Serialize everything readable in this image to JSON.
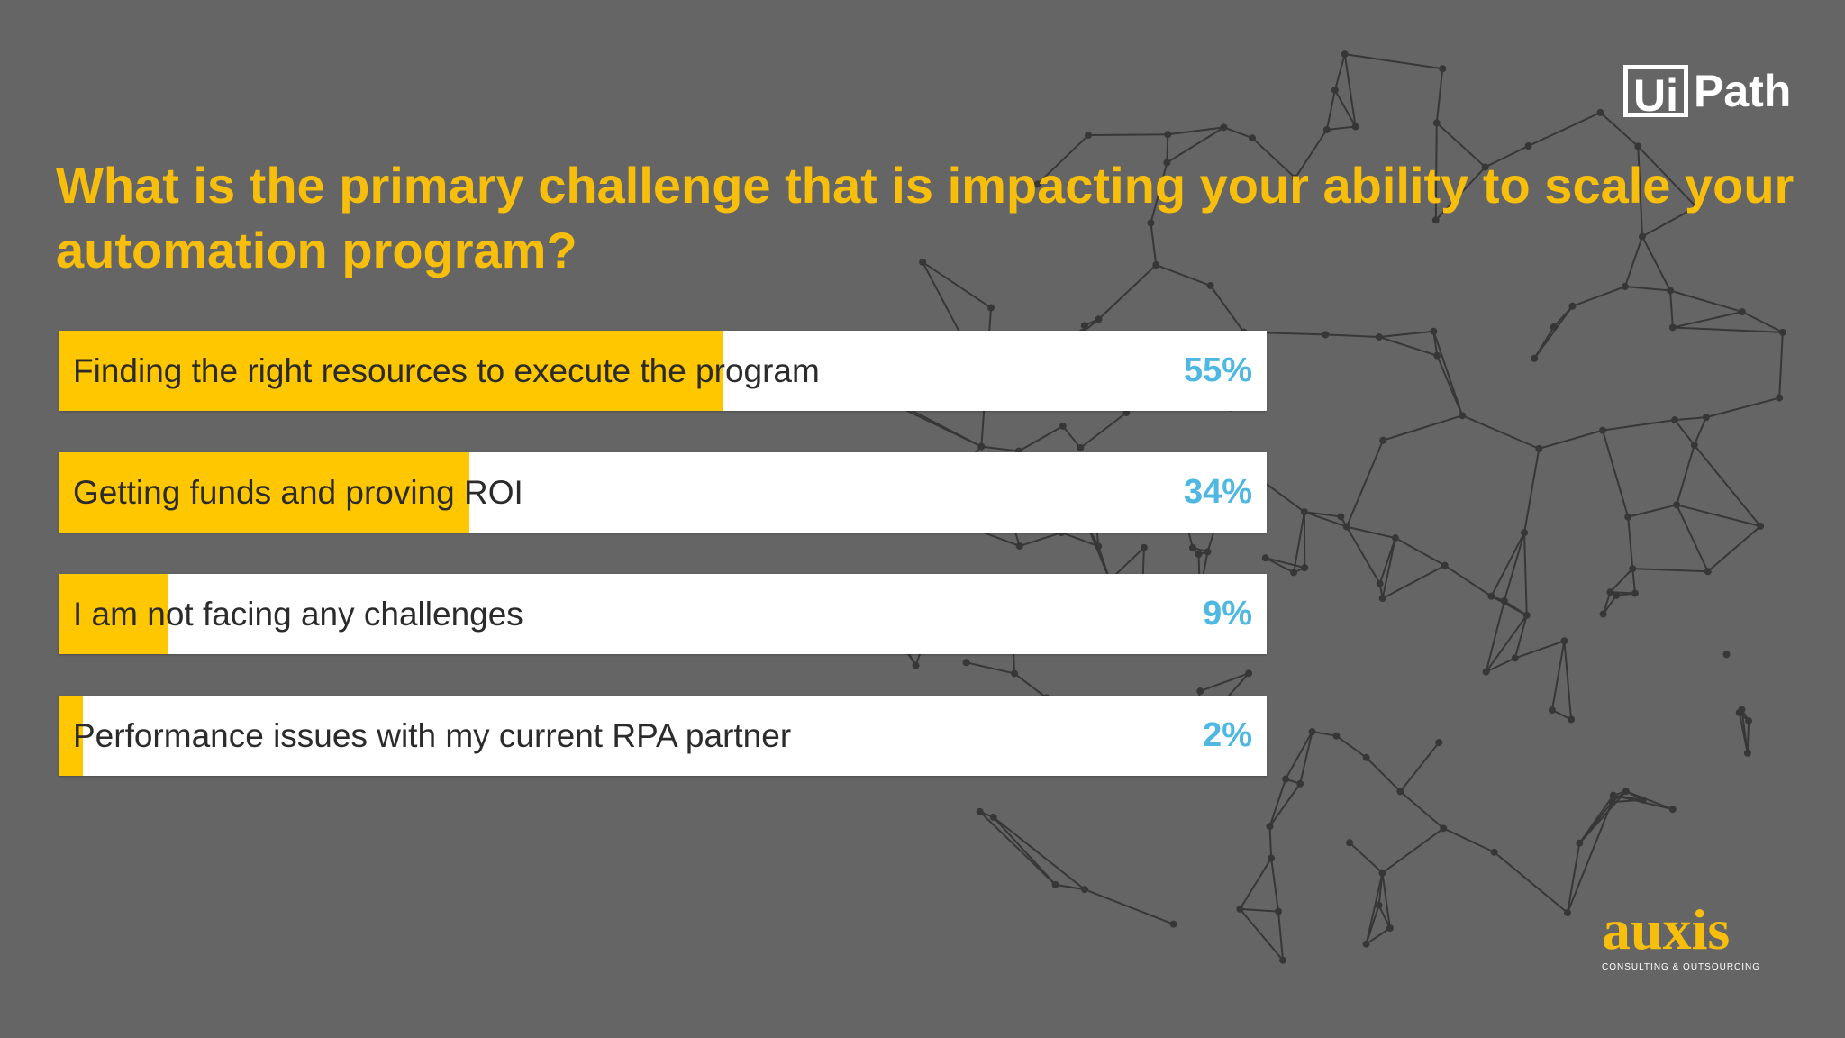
{
  "chart_data": {
    "type": "bar",
    "orientation": "horizontal",
    "title": "What is the primary challenge that is impacting your ability to scale your automation program?",
    "categories": [
      "Finding the right resources to execute the program",
      "Getting funds and proving ROI",
      "I am not facing any challenges",
      "Performance issues with my current RPA partner"
    ],
    "values": [
      55,
      34,
      9,
      2
    ],
    "value_labels": [
      "55%",
      "34%",
      "9%",
      "2%"
    ],
    "xlim": [
      0,
      100
    ],
    "bar_color": "#FFC700",
    "track_color": "#FFFFFF",
    "value_color": "#4EB8E3",
    "title_color": "#F7BE0B",
    "grid": false
  },
  "logos": {
    "uipath": {
      "box_text": "Ui",
      "text": "Path"
    },
    "auxis": {
      "text": "auxis",
      "tagline": "CONSULTING & OUTSOURCING"
    }
  },
  "background": {
    "color": "#656565",
    "decoration": "globe-network-graphic"
  }
}
